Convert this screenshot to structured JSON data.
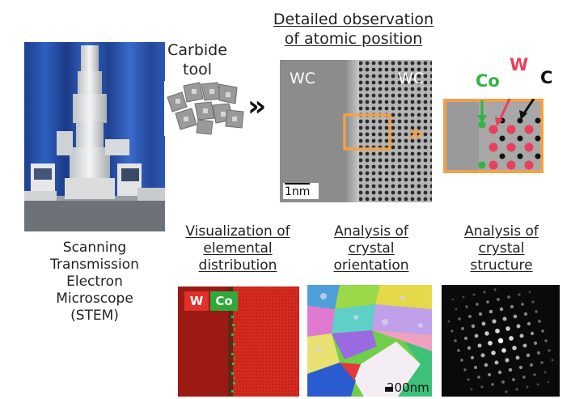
{
  "stem": {
    "caption_lines": [
      "Scanning",
      "Transmission",
      "Electron",
      "Microscope",
      "(STEM)"
    ]
  },
  "carbide": {
    "caption_lines": [
      "Carbide",
      "tool"
    ]
  },
  "atomic": {
    "title_lines": [
      "Detailed observation",
      "of atomic position"
    ],
    "label_left": "WC",
    "label_right": "WC",
    "scale_label": "1nm"
  },
  "zoom": {
    "label_co": "Co",
    "label_w": "W",
    "label_c": "C",
    "colors": {
      "co": "#2fb545",
      "w": "#e8405a",
      "c": "#111111",
      "frame": "#f0a14a"
    }
  },
  "elemental": {
    "title_lines": [
      "Visualization of",
      "elemental",
      "distribution"
    ],
    "tag_w": "W",
    "tag_co": "Co"
  },
  "orientation": {
    "title_lines": [
      "Analysis of",
      "crystal",
      "orientation"
    ],
    "scale_label": "200nm"
  },
  "structure": {
    "title_lines": [
      "Analysis of",
      "crystal",
      "structure"
    ]
  },
  "arrows": {
    "black": "»",
    "orange": "»"
  }
}
